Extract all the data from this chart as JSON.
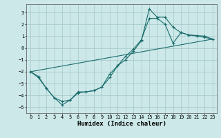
{
  "xlabel": "Humidex (Indice chaleur)",
  "xlim": [
    -0.5,
    23.5
  ],
  "ylim": [
    -5.5,
    3.7
  ],
  "xticks": [
    0,
    1,
    2,
    3,
    4,
    5,
    6,
    7,
    8,
    9,
    10,
    11,
    12,
    13,
    14,
    15,
    16,
    17,
    18,
    19,
    20,
    21,
    22,
    23
  ],
  "yticks": [
    -5,
    -4,
    -3,
    -2,
    -1,
    0,
    1,
    2,
    3
  ],
  "bg_color": "#cce8e8",
  "grid_color": "#aacccc",
  "line_color": "#1a6b6b",
  "line1_x": [
    0,
    1,
    2,
    3,
    4,
    5,
    6,
    7,
    8,
    9,
    10,
    11,
    12,
    13,
    14,
    15,
    16,
    17,
    18,
    19,
    20,
    21,
    22,
    23
  ],
  "line1_y": [
    -2.0,
    -2.5,
    -3.4,
    -4.2,
    -4.5,
    -4.4,
    -3.8,
    -3.7,
    -3.6,
    -3.3,
    -2.2,
    -1.5,
    -1.0,
    -0.25,
    0.6,
    3.3,
    2.6,
    2.6,
    1.75,
    1.3,
    1.1,
    1.05,
    1.0,
    0.75
  ],
  "line2_x": [
    0,
    1,
    2,
    3,
    4,
    5,
    6,
    7,
    8,
    9,
    10,
    11,
    12,
    13,
    14,
    15,
    16,
    17,
    18,
    19,
    20,
    21,
    22,
    23
  ],
  "line2_y": [
    -2.0,
    -2.4,
    -3.4,
    -4.2,
    -4.8,
    -4.4,
    -3.7,
    -3.7,
    -3.6,
    -3.3,
    -2.5,
    -1.5,
    -0.7,
    -0.1,
    0.7,
    2.5,
    2.5,
    2.0,
    0.4,
    1.3,
    1.1,
    1.0,
    0.9,
    0.75
  ],
  "line3_x": [
    0,
    23
  ],
  "line3_y": [
    -2.0,
    0.75
  ]
}
